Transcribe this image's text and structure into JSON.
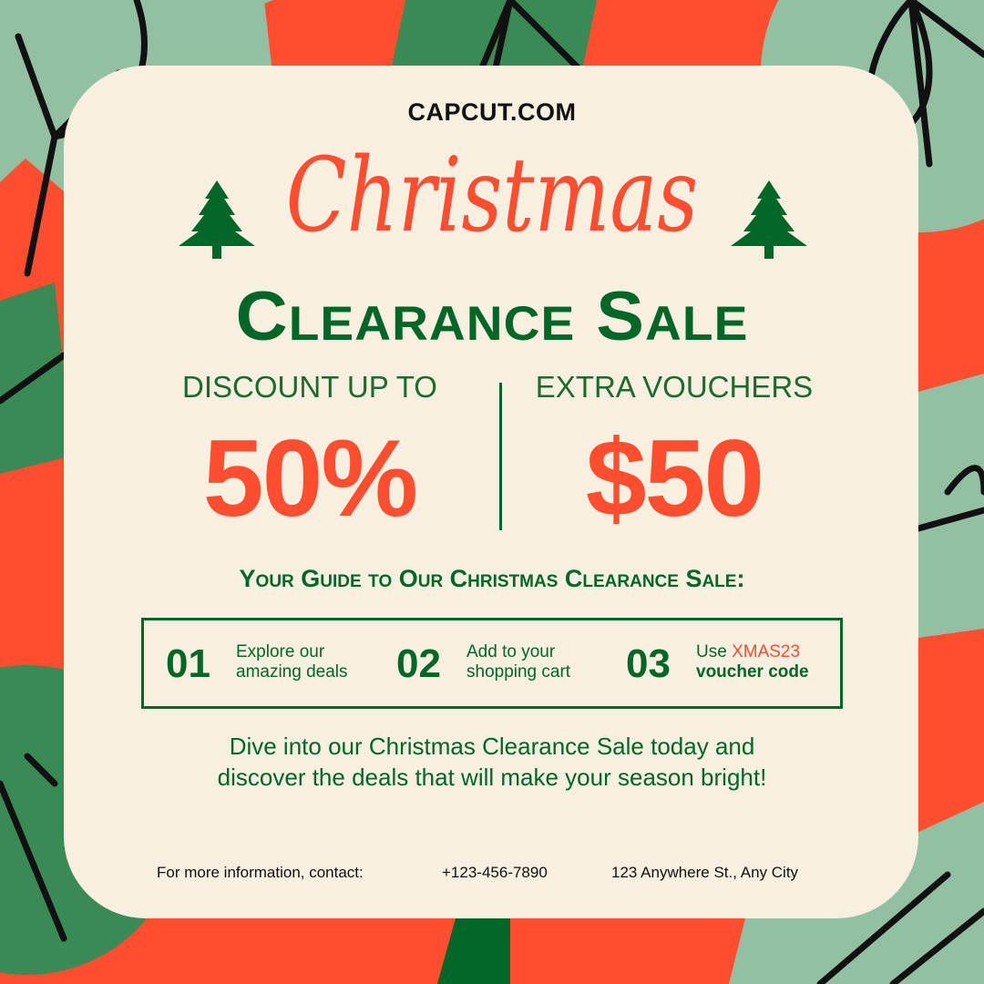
{
  "brand": "CAPCUT.COM",
  "title": "Christmas",
  "subtitle": "Clearance Sale",
  "offers": [
    {
      "label": "DISCOUNT UP TO",
      "value": "50%"
    },
    {
      "label": "EXTRA VOUCHERS",
      "value": "$50"
    }
  ],
  "guide_heading": "Your Guide to Our Christmas Clearance Sale:",
  "steps": [
    {
      "num": "01",
      "line1": "Explore our",
      "line2": "amazing deals"
    },
    {
      "num": "02",
      "line1": "Add to your",
      "line2": "shopping cart"
    },
    {
      "num": "03",
      "line1_prefix": "Use ",
      "code": "XMAS23",
      "line2": "voucher code"
    }
  ],
  "paragraph": "Dive into our Christmas Clearance Sale today and discover the deals that will make your season bright!",
  "footer": {
    "label": "For more information, contact:",
    "phone": "+123-456-7890",
    "address": "123 Anywhere St., Any City"
  },
  "colors": {
    "red": "#ff4e2f",
    "dark_green": "#006729",
    "mid_green": "#3a8a55",
    "light_green": "#93bfa3",
    "cream": "#f7efdf"
  }
}
